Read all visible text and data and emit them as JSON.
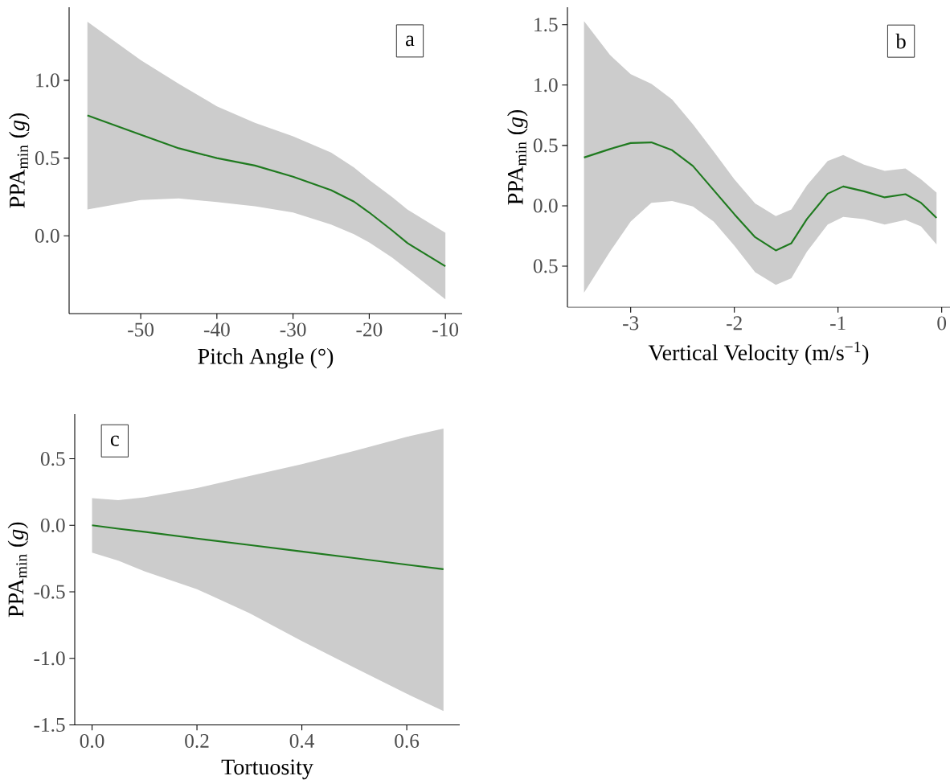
{
  "chart_data": [
    {
      "type": "line",
      "xlabel": "Pitch Angle (°)",
      "ylabel": "PPA$_{min}$ (*g*)",
      "annotations": [
        "a"
      ],
      "xlim": [
        -59.4,
        -7.8
      ],
      "xticks": [
        -50,
        -40,
        -30,
        -20,
        -10
      ],
      "ylim": [
        -0.5,
        1.47
      ],
      "yticks": [
        {
          "value": 0,
          "label": "0.0"
        },
        0.5,
        {
          "value": 1,
          "label": "1.0"
        }
      ],
      "x": [
        -57,
        -50,
        -45,
        -40,
        -35,
        -30,
        -25,
        -22,
        -20,
        -17,
        -15,
        -10
      ],
      "series": [
        {
          "color": "#1f7a1f",
          "values": [
            0.775,
            0.65,
            0.563,
            0.5,
            0.452,
            0.38,
            0.294,
            0.22,
            0.15,
            0.035,
            -0.046,
            -0.196
          ],
          "upper": [
            1.377,
            1.13,
            0.977,
            0.833,
            0.727,
            0.64,
            0.535,
            0.44,
            0.36,
            0.25,
            0.17,
            0.02
          ],
          "lower": [
            0.17,
            0.23,
            0.24,
            0.217,
            0.19,
            0.15,
            0.073,
            0.01,
            -0.042,
            -0.14,
            -0.215,
            -0.408
          ]
        }
      ]
    },
    {
      "type": "line",
      "xlabel": "Vertical Velocity (m/s$^{−1}$)",
      "ylabel": "PPA$_{min}$ (*g*)",
      "annotations": [
        "b"
      ],
      "xlim": [
        -3.61,
        0.08
      ],
      "xticks": [
        -3,
        -2,
        -1,
        0
      ],
      "ylim": [
        -0.84,
        1.645
      ],
      "yticks": [
        {
          "value": -0.5,
          "label": "0.5"
        },
        {
          "value": 0,
          "label": "0.0"
        },
        0.5,
        {
          "value": 1,
          "label": "1.0"
        },
        1.5
      ],
      "x": [
        -3.45,
        -3.2,
        -3.0,
        -2.8,
        -2.6,
        -2.4,
        -2.2,
        -2.0,
        -1.8,
        -1.6,
        -1.45,
        -1.3,
        -1.1,
        -0.95,
        -0.75,
        -0.55,
        -0.35,
        -0.2,
        -0.05
      ],
      "series": [
        {
          "color": "#1f7a1f",
          "values": [
            0.4,
            0.47,
            0.52,
            0.525,
            0.46,
            0.33,
            0.13,
            -0.07,
            -0.26,
            -0.37,
            -0.31,
            -0.11,
            0.1,
            0.16,
            0.12,
            0.07,
            0.096,
            0.025,
            -0.1
          ],
          "upper": [
            1.53,
            1.25,
            1.09,
            1.01,
            0.88,
            0.675,
            0.45,
            0.22,
            0.02,
            -0.086,
            -0.03,
            0.17,
            0.37,
            0.42,
            0.34,
            0.29,
            0.31,
            0.22,
            0.11
          ],
          "lower": [
            -0.72,
            -0.38,
            -0.13,
            0.025,
            0.04,
            -0.005,
            -0.13,
            -0.33,
            -0.55,
            -0.655,
            -0.6,
            -0.38,
            -0.156,
            -0.093,
            -0.11,
            -0.156,
            -0.118,
            -0.17,
            -0.32
          ]
        }
      ]
    },
    {
      "type": "line",
      "xlabel": "Tortuosity",
      "ylabel": "PPA$_{min}$ (*g*)",
      "annotations": [
        "c"
      ],
      "xlim": [
        -0.033,
        0.701
      ],
      "xticks": [
        {
          "value": 0,
          "label": "0.0"
        },
        0.2,
        0.4,
        0.6
      ],
      "ylim": [
        -1.5,
        0.836
      ],
      "yticks": [
        -1.5,
        {
          "value": -1,
          "label": "-1.0"
        },
        -0.5,
        {
          "value": 0,
          "label": "0.0"
        },
        0.5
      ],
      "x": [
        0,
        0.05,
        0.1,
        0.2,
        0.3,
        0.4,
        0.5,
        0.6,
        0.67
      ],
      "series": [
        {
          "color": "#1f7a1f",
          "values": [
            0,
            -0.025,
            -0.049,
            -0.099,
            -0.148,
            -0.197,
            -0.246,
            -0.296,
            -0.33
          ],
          "upper": [
            0.205,
            0.19,
            0.21,
            0.28,
            0.37,
            0.46,
            0.56,
            0.665,
            0.727
          ],
          "lower": [
            -0.205,
            -0.266,
            -0.345,
            -0.48,
            -0.66,
            -0.87,
            -1.07,
            -1.266,
            -1.395
          ]
        }
      ]
    }
  ]
}
